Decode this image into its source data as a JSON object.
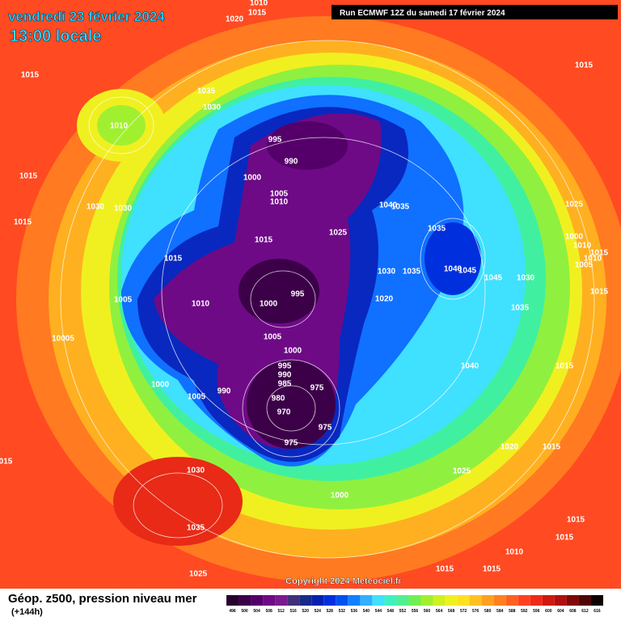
{
  "header": {
    "date": "vendredi 23 février 2024",
    "time": "13:00 locale",
    "run": "Run ECMWF 12Z du samedi 17 février 2024"
  },
  "map": {
    "isobar_labels": [
      "1010",
      "1015",
      "1020",
      "1015",
      "1035",
      "1030",
      "1010",
      "995",
      "990",
      "1000",
      "1005",
      "1010",
      "1015",
      "1015",
      "1030",
      "1030",
      "1040",
      "1035",
      "1025",
      "1035",
      "1015",
      "1015",
      "1030",
      "1035",
      "1040",
      "1045",
      "1045",
      "1030",
      "1025",
      "1000",
      "1010",
      "1005",
      "1010",
      "1015",
      "1015",
      "1015",
      "1005",
      "1010",
      "1000",
      "995",
      "1020",
      "1035",
      "10005",
      "1005",
      "1000",
      "995",
      "990",
      "985",
      "975",
      "980",
      "970",
      "975",
      "975",
      "1000",
      "990",
      "1005",
      "1040",
      "1015",
      "1020",
      "1015",
      "1025",
      "1030",
      "1035",
      "1000",
      "1025",
      "1015",
      "1015",
      "1015",
      "1010",
      "1015",
      "015"
    ]
  },
  "footer": {
    "title": "Géop. z500, pression niveau mer",
    "lead": "(+144h)",
    "copyright": "Copyright 2024 Meteociel.fr"
  },
  "legend": {
    "ticks": [
      496,
      500,
      504,
      508,
      512,
      516,
      520,
      524,
      528,
      532,
      536,
      540,
      544,
      548,
      552,
      556,
      560,
      564,
      568,
      572,
      576,
      580,
      584,
      588,
      592,
      596,
      600,
      604,
      608,
      612,
      616
    ],
    "colors": [
      "#2a0030",
      "#3c0048",
      "#55006a",
      "#6e0a86",
      "#7a1a8e",
      "#40307a",
      "#182a8a",
      "#0820b0",
      "#0030dd",
      "#0050f0",
      "#1080ff",
      "#30b0ff",
      "#40e0ff",
      "#40f0c0",
      "#50f090",
      "#70f050",
      "#a0f030",
      "#d0f020",
      "#f0f020",
      "#ffe020",
      "#ffc020",
      "#ffa020",
      "#ff8020",
      "#ff6020",
      "#ff4020",
      "#f02818",
      "#d01810",
      "#b01010",
      "#800808",
      "#500404",
      "#100000"
    ]
  }
}
